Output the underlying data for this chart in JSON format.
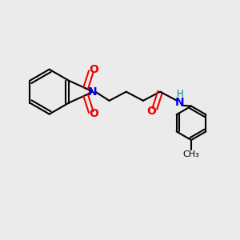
{
  "bg_color": "#ebebeb",
  "bond_color": "#000000",
  "N_color": "#0000ee",
  "O_color": "#ee0000",
  "H_color": "#008080",
  "line_width": 1.5,
  "font_size_atom": 10,
  "font_size_H": 8.5,
  "fig_width": 3.0,
  "fig_height": 3.0,
  "xlim": [
    0,
    10
  ],
  "ylim": [
    0,
    10
  ]
}
